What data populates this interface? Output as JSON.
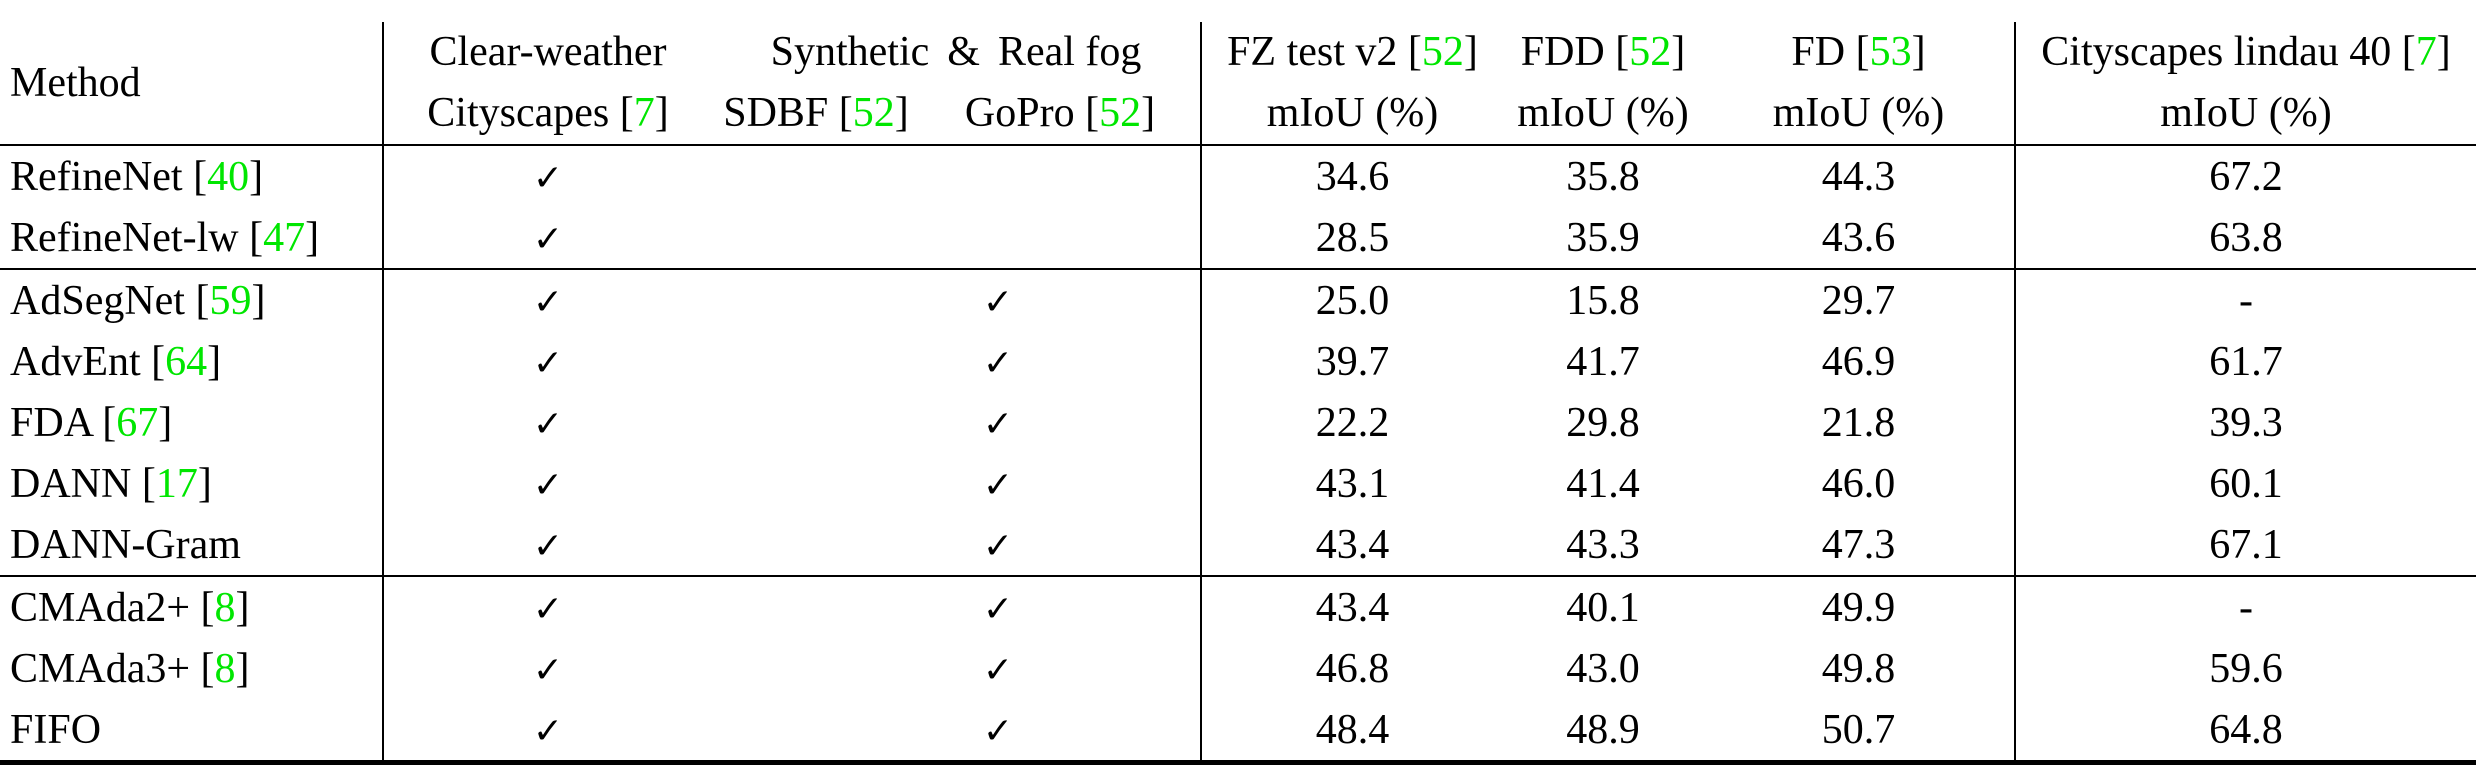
{
  "header": {
    "method": "Method",
    "clear_weather_line1": "Clear-weather",
    "clear_weather_line2": "Cityscapes [",
    "clear_weather_cite": "7",
    "synthetic_label": "Synthetic",
    "ampersand": "&",
    "real_fog_label": "Real fog",
    "sdbf_label": "SDBF [",
    "sdbf_cite": "52",
    "gopro_label": "GoPro [",
    "gopro_cite": "52",
    "fz_label": "FZ test v2 [",
    "fz_cite": "52",
    "fdd_label": "FDD [",
    "fdd_cite": "52",
    "fd_label": "FD [",
    "fd_cite": "53",
    "city_label": "Cityscapes lindau 40 [",
    "city_cite": "7",
    "close_bracket": "]",
    "miou": "mIoU (%)"
  },
  "check_mark": "✓",
  "rows": [
    {
      "method": "RefineNet [",
      "cite": "40",
      "close": "]",
      "clear": "✓",
      "sdbf": "",
      "fz": "34.6",
      "fdd": "35.8",
      "fd": "44.3",
      "city": "67.2"
    },
    {
      "method": "RefineNet-lw [",
      "cite": "47",
      "close": "]",
      "clear": "✓",
      "sdbf": "",
      "fz": "28.5",
      "fdd": "35.9",
      "fd": "43.6",
      "city": "63.8"
    },
    {
      "method": "AdSegNet [",
      "cite": "59",
      "close": "]",
      "clear": "✓",
      "sdbf": "✓",
      "fz": "25.0",
      "fdd": "15.8",
      "fd": "29.7",
      "city": "-"
    },
    {
      "method": "AdvEnt [",
      "cite": "64",
      "close": "]",
      "clear": "✓",
      "sdbf": "✓",
      "fz": "39.7",
      "fdd": "41.7",
      "fd": "46.9",
      "city": "61.7"
    },
    {
      "method": "FDA [",
      "cite": "67",
      "close": "]",
      "clear": "✓",
      "sdbf": "✓",
      "fz": "22.2",
      "fdd": "29.8",
      "fd": "21.8",
      "city": "39.3"
    },
    {
      "method": "DANN [",
      "cite": "17",
      "close": "]",
      "clear": "✓",
      "sdbf": "✓",
      "fz": "43.1",
      "fdd": "41.4",
      "fd": "46.0",
      "city": "60.1"
    },
    {
      "method": "DANN-Gram",
      "cite": "",
      "close": "",
      "clear": "✓",
      "sdbf": "✓",
      "fz": "43.4",
      "fdd": "43.3",
      "fd": "47.3",
      "city": "67.1"
    },
    {
      "method": "CMAda2+ [",
      "cite": "8",
      "close": "]",
      "clear": "✓",
      "sdbf": "✓",
      "fz": "43.4",
      "fdd": "40.1",
      "fd": "49.9",
      "city": "-"
    },
    {
      "method": "CMAda3+ [",
      "cite": "8",
      "close": "]",
      "clear": "✓",
      "sdbf": "✓",
      "fz": "46.8",
      "fdd": "43.0",
      "fd": "49.8",
      "city": "59.6"
    },
    {
      "method": "FIFO",
      "cite": "",
      "close": "",
      "clear": "✓",
      "sdbf": "✓",
      "fz": "48.4",
      "fdd": "48.9",
      "fd": "50.7",
      "city": "64.8"
    }
  ],
  "bold_cells": {
    "row": 9,
    "columns": [
      "fz",
      "fdd",
      "fd"
    ]
  }
}
